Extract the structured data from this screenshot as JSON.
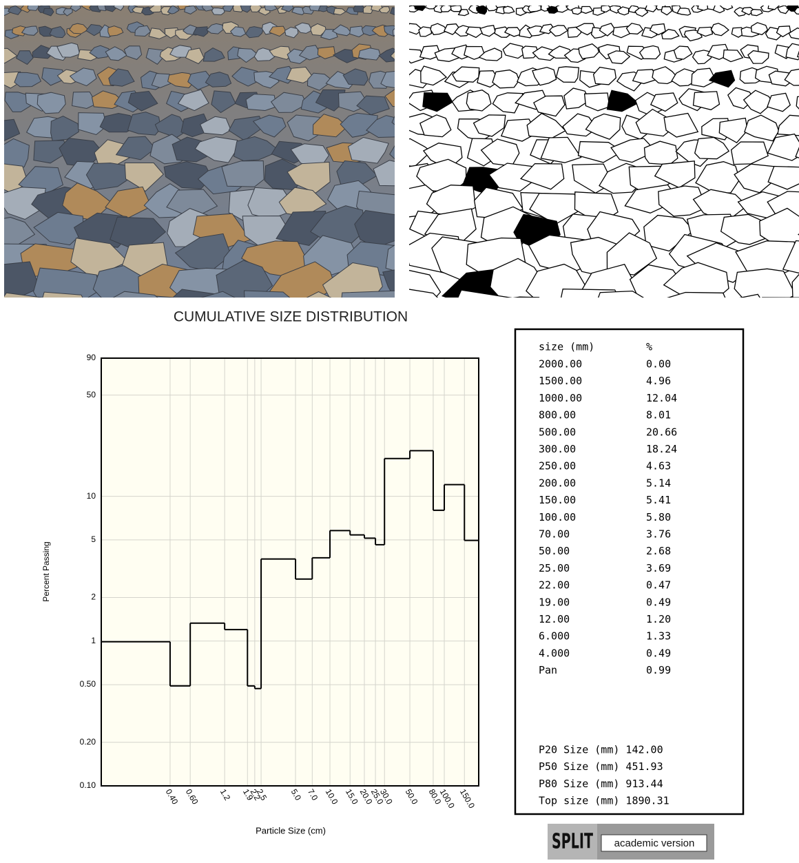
{
  "chart_data": {
    "type": "histogram",
    "title": "CUMULATIVE SIZE DISTRIBUTION",
    "xlabel": "Particle Size (cm)",
    "ylabel": "Percent Passing",
    "xscale": "log",
    "yscale": "log",
    "grid": true,
    "color": "#000000",
    "bins": [
      0.1,
      0.4,
      0.6,
      1.2,
      1.9,
      2.2,
      2.5,
      5,
      7,
      10,
      15,
      20,
      25,
      30,
      50,
      80,
      100,
      150,
      200
    ],
    "counts": [
      0.99,
      0.49,
      1.33,
      1.2,
      0.49,
      0.47,
      3.69,
      2.68,
      3.76,
      5.8,
      5.41,
      5.14,
      4.63,
      18.24,
      20.66,
      8.01,
      12.04,
      4.96
    ],
    "xlim": [
      0.1,
      200
    ],
    "ylim": [
      0.1,
      90
    ],
    "xticks": [
      {
        "value": 0.4,
        "label": "0.40"
      },
      {
        "value": 0.6,
        "label": "0.60"
      },
      1.2,
      1.9,
      2.2,
      2.5,
      {
        "value": 5,
        "label": "5.0"
      },
      {
        "value": 7,
        "label": "7.0"
      },
      {
        "value": 10,
        "label": "10.0"
      },
      {
        "value": 15,
        "label": "15.0"
      },
      {
        "value": 20,
        "label": "20.0"
      },
      {
        "value": 25,
        "label": "25.0"
      },
      {
        "value": 30,
        "label": "30.0"
      },
      {
        "value": 50,
        "label": "50.0"
      },
      {
        "value": 80,
        "label": "80.0"
      },
      {
        "value": 100,
        "label": "100.0"
      },
      {
        "value": 150,
        "label": "150.0"
      }
    ],
    "yticks": [
      {
        "value": 0.1,
        "label": "0.10"
      },
      {
        "value": 0.2,
        "label": "0.20"
      },
      {
        "value": 0.5,
        "label": "0.50"
      },
      1,
      2,
      5,
      10,
      50,
      90
    ]
  },
  "table": {
    "header": [
      "size (mm)",
      "%"
    ],
    "rows": [
      [
        "2000.00",
        "0.00"
      ],
      [
        "1500.00",
        "4.96"
      ],
      [
        "1000.00",
        "12.04"
      ],
      [
        "800.00",
        "8.01"
      ],
      [
        "500.00",
        "20.66"
      ],
      [
        "300.00",
        "18.24"
      ],
      [
        "250.00",
        "4.63"
      ],
      [
        "200.00",
        "5.14"
      ],
      [
        "150.00",
        "5.41"
      ],
      [
        "100.00",
        "5.80"
      ],
      [
        "70.00",
        "3.76"
      ],
      [
        "50.00",
        "2.68"
      ],
      [
        "25.00",
        "3.69"
      ],
      [
        "22.00",
        "0.47"
      ],
      [
        "19.00",
        "0.49"
      ],
      [
        "12.00",
        "1.20"
      ],
      [
        "6.000",
        "1.33"
      ],
      [
        "4.000",
        "0.49"
      ],
      [
        "Pan",
        "0.99"
      ]
    ],
    "summary": [
      "P20 Size (mm) 142.00",
      "P50 Size (mm) 451.93",
      "P80 Size (mm) 913.44",
      "Top size (mm) 1890.31"
    ]
  },
  "logo": {
    "brand": "SPLIT",
    "edition": "academic version"
  }
}
